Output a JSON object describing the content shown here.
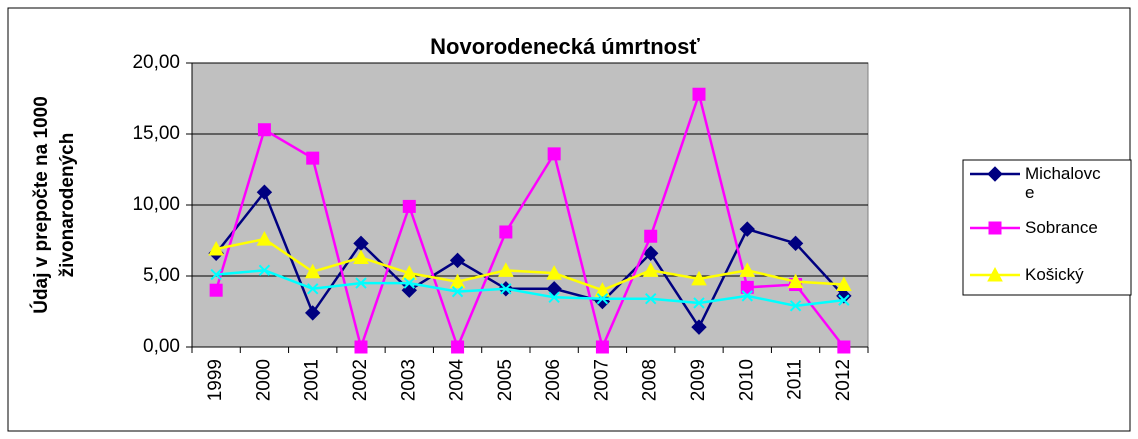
{
  "chart_data": {
    "type": "line",
    "title": "Novorodenecká úmrtnosť",
    "ylabel": [
      "Údaj v prepočte na 1000",
      "živonarodených"
    ],
    "categories": [
      "1999",
      "2000",
      "2001",
      "2002",
      "2003",
      "2004",
      "2005",
      "2006",
      "2007",
      "2008",
      "2009",
      "2010",
      "2011",
      "2012"
    ],
    "series": [
      {
        "name": "Michalovce",
        "color": "#000080",
        "marker": "diamond",
        "values": [
          6.6,
          10.9,
          2.4,
          7.3,
          4.0,
          6.1,
          4.1,
          4.1,
          3.2,
          6.6,
          1.4,
          8.3,
          7.3,
          3.6
        ]
      },
      {
        "name": "Sobrance",
        "color": "#ff00ff",
        "marker": "square",
        "values": [
          4.0,
          15.3,
          13.3,
          0,
          9.9,
          0,
          8.1,
          13.6,
          0,
          7.8,
          17.8,
          4.2,
          4.4,
          0
        ]
      },
      {
        "name": "Košický",
        "color": "#ffff00",
        "marker": "triangle",
        "values": [
          6.9,
          7.6,
          5.3,
          6.3,
          5.2,
          4.6,
          5.4,
          5.2,
          4.0,
          5.4,
          4.8,
          5.4,
          4.6,
          4.4
        ]
      },
      {
        "color": "#00ffff",
        "marker": "x",
        "values": [
          5.1,
          5.4,
          4.1,
          4.5,
          4.5,
          3.9,
          4.1,
          3.5,
          3.4,
          3.4,
          3.1,
          3.6,
          2.9,
          3.3
        ]
      }
    ],
    "ylim": [
      0,
      20
    ],
    "yticks": [
      {
        "value": 0,
        "label": "0,00"
      },
      {
        "value": 5,
        "label": "5,00"
      },
      {
        "value": 10,
        "label": "10,00"
      },
      {
        "value": 15,
        "label": "15,00"
      },
      {
        "value": 20,
        "label": "20,00"
      }
    ],
    "grid": true,
    "legend": "right"
  }
}
